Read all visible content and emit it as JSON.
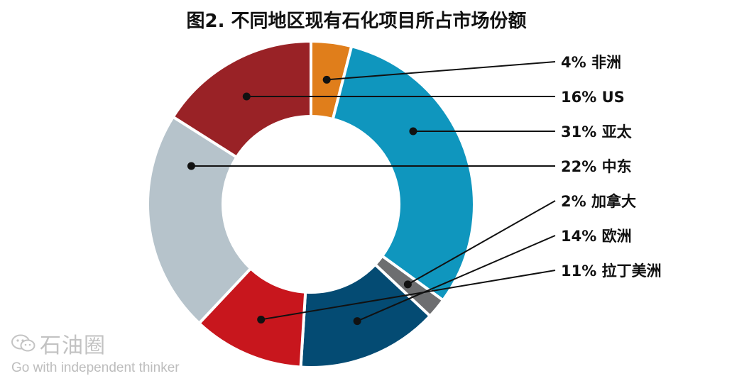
{
  "chart_data": {
    "type": "pie",
    "title": "图2. 不同地区现有石化项目所占市场份额",
    "slices": [
      {
        "percent": "4%",
        "name": "非洲",
        "value": 4,
        "color": "#E07E1B"
      },
      {
        "percent": "31%",
        "name": "亚太",
        "value": 31,
        "color": "#0F96BE"
      },
      {
        "percent": "2%",
        "name": "加拿大",
        "value": 2,
        "color": "#6D6E70"
      },
      {
        "percent": "14%",
        "name": "欧洲",
        "value": 14,
        "color": "#044B73"
      },
      {
        "percent": "11%",
        "name": "拉丁美洲",
        "value": 11,
        "color": "#C8161D"
      },
      {
        "percent": "22%",
        "name": "中东",
        "value": 22,
        "color": "#B6C3CB"
      },
      {
        "percent": "16%",
        "name": "US",
        "value": 16,
        "color": "#992226"
      }
    ],
    "legend_order": [
      "非洲",
      "US",
      "亚太",
      "中东",
      "加拿大",
      "欧洲",
      "拉丁美洲"
    ]
  },
  "watermark": {
    "name": "石油圈",
    "slogan": "Go with independent thinker",
    "icon": "wechat-icon"
  }
}
